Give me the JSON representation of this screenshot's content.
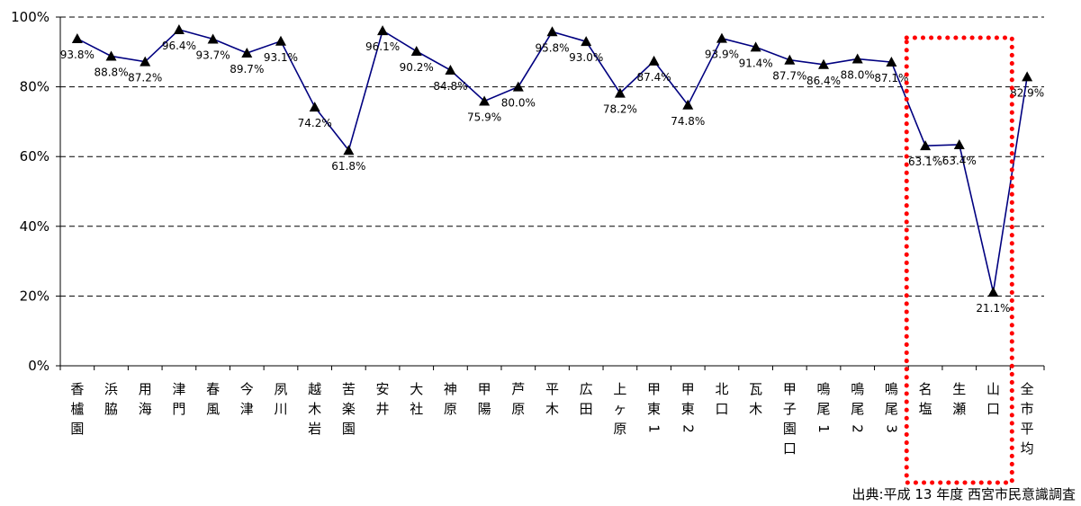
{
  "source_note": "出典:平成 13 年度  西宮市民意識調査",
  "chart_data": {
    "type": "line",
    "categories": [
      "香櫨園",
      "浜脇",
      "用海",
      "津門",
      "春風",
      "今津",
      "夙川",
      "越木岩",
      "苦楽園",
      "安井",
      "大社",
      "神原",
      "甲陽",
      "芦原",
      "平木",
      "広田",
      "上ヶ原",
      "甲東1",
      "甲東2",
      "北口",
      "瓦木",
      "甲子園口",
      "鳴尾1",
      "鳴尾2",
      "鳴尾3",
      "名塩",
      "生瀬",
      "山口",
      "全市平均"
    ],
    "category_lines": [
      [
        "香",
        "櫨",
        "園"
      ],
      [
        "浜",
        "脇"
      ],
      [
        "用",
        "海"
      ],
      [
        "津",
        "門"
      ],
      [
        "春",
        "風"
      ],
      [
        "今",
        "津"
      ],
      [
        "夙",
        "川"
      ],
      [
        "越",
        "木",
        "岩"
      ],
      [
        "苦",
        "楽",
        "園"
      ],
      [
        "安",
        "井"
      ],
      [
        "大",
        "社"
      ],
      [
        "神",
        "原"
      ],
      [
        "甲",
        "陽"
      ],
      [
        "芦",
        "原"
      ],
      [
        "平",
        "木"
      ],
      [
        "広",
        "田"
      ],
      [
        "上",
        "ヶ",
        "原"
      ],
      [
        "甲",
        "東",
        "1"
      ],
      [
        "甲",
        "東",
        "2"
      ],
      [
        "北",
        "口"
      ],
      [
        "瓦",
        "木"
      ],
      [
        "甲",
        "子",
        "園",
        "口"
      ],
      [
        "鳴",
        "尾",
        "1"
      ],
      [
        "鳴",
        "尾",
        "2"
      ],
      [
        "鳴",
        "尾",
        "3"
      ],
      [
        "名",
        "塩"
      ],
      [
        "生",
        "瀬"
      ],
      [
        "山",
        "口"
      ],
      [
        "全",
        "市",
        "平",
        "均"
      ]
    ],
    "series": [
      {
        "values": [
          93.8,
          88.8,
          87.2,
          96.4,
          93.7,
          89.7,
          93.1,
          74.2,
          61.8,
          96.1,
          90.2,
          84.8,
          75.9,
          80.0,
          95.8,
          93.0,
          78.2,
          87.4,
          74.8,
          93.9,
          91.4,
          87.7,
          86.4,
          88.0,
          87.1,
          63.1,
          63.4,
          21.1,
          82.9
        ],
        "labels": [
          "93.8%",
          "88.8%",
          "87.2%",
          "96.4%",
          "93.7%",
          "89.7%",
          "93.1%",
          "74.2%",
          "61.8%",
          "96.1%",
          "90.2%",
          "84.8%",
          "75.9%",
          "80.0%",
          "95.8%",
          "93.0%",
          "78.2%",
          "87.4%",
          "74.8%",
          "93.9%",
          "91.4%",
          "87.7%",
          "86.4%",
          "88.0%",
          "87.1%",
          "63.1%",
          "63.4%",
          "21.1%",
          "82.9%"
        ],
        "color": "#000080",
        "marker": "triangle"
      }
    ],
    "ylim": [
      0,
      100
    ],
    "yticks": [
      "0%",
      "20%",
      "40%",
      "60%",
      "80%",
      "100%"
    ],
    "grid": "dashed horizontal",
    "highlight": {
      "categories": [
        "名塩",
        "生瀬",
        "山口"
      ],
      "style": "dotted box",
      "color": "#ff0000"
    }
  }
}
